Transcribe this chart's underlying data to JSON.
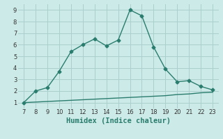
{
  "x_main": [
    7,
    8,
    9,
    10,
    11,
    12,
    13,
    14,
    15,
    16,
    17,
    18,
    19,
    20,
    21,
    22,
    23
  ],
  "y_main": [
    1.0,
    2.0,
    2.3,
    3.7,
    5.4,
    6.0,
    6.5,
    5.9,
    6.4,
    9.0,
    8.5,
    5.8,
    3.9,
    2.8,
    2.9,
    2.4,
    2.1
  ],
  "x_lower": [
    7,
    8,
    9,
    10,
    11,
    12,
    13,
    14,
    15,
    16,
    17,
    18,
    19,
    20,
    21,
    22,
    23
  ],
  "y_lower": [
    1.0,
    1.05,
    1.1,
    1.15,
    1.2,
    1.25,
    1.3,
    1.35,
    1.4,
    1.45,
    1.5,
    1.55,
    1.6,
    1.7,
    1.75,
    1.85,
    1.9
  ],
  "line_color": "#2a7d6e",
  "bg_color": "#cceae7",
  "grid_color": "#aacfcc",
  "xlabel": "Humidex (Indice chaleur)",
  "xlim": [
    6.5,
    23.5
  ],
  "ylim": [
    0.5,
    9.5
  ],
  "xticks": [
    7,
    8,
    9,
    10,
    11,
    12,
    13,
    14,
    15,
    16,
    17,
    18,
    19,
    20,
    21,
    22,
    23
  ],
  "yticks": [
    1,
    2,
    3,
    4,
    5,
    6,
    7,
    8,
    9
  ],
  "marker": "D",
  "marker_size": 2.5,
  "linewidth": 1.0,
  "tick_fontsize": 6,
  "xlabel_fontsize": 7.5
}
